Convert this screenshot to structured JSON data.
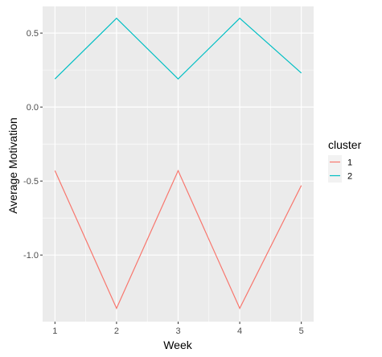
{
  "chart_data": {
    "type": "line",
    "xlabel": "Week",
    "ylabel": "Average Motivation",
    "x": [
      1,
      2,
      3,
      4,
      5
    ],
    "x_ticks": [
      "1",
      "2",
      "3",
      "4",
      "5"
    ],
    "y_ticks": [
      "0.5",
      "0.0",
      "-0.5",
      "-1.0"
    ],
    "y_tick_values": [
      0.5,
      0.0,
      -0.5,
      -1.0
    ],
    "xlim": [
      0.8,
      5.2
    ],
    "ylim": [
      -1.45,
      0.68
    ],
    "grid": true,
    "legend": {
      "title": "cluster",
      "position": "right"
    },
    "series": [
      {
        "name": "1",
        "color": "#F8766D",
        "values": [
          -0.43,
          -1.36,
          -0.43,
          -1.36,
          -0.53
        ]
      },
      {
        "name": "2",
        "color": "#00BFC4",
        "values": [
          0.19,
          0.6,
          0.19,
          0.6,
          0.23
        ]
      }
    ],
    "panel_background": "#EBEBEB",
    "grid_color": "#FFFFFF"
  }
}
